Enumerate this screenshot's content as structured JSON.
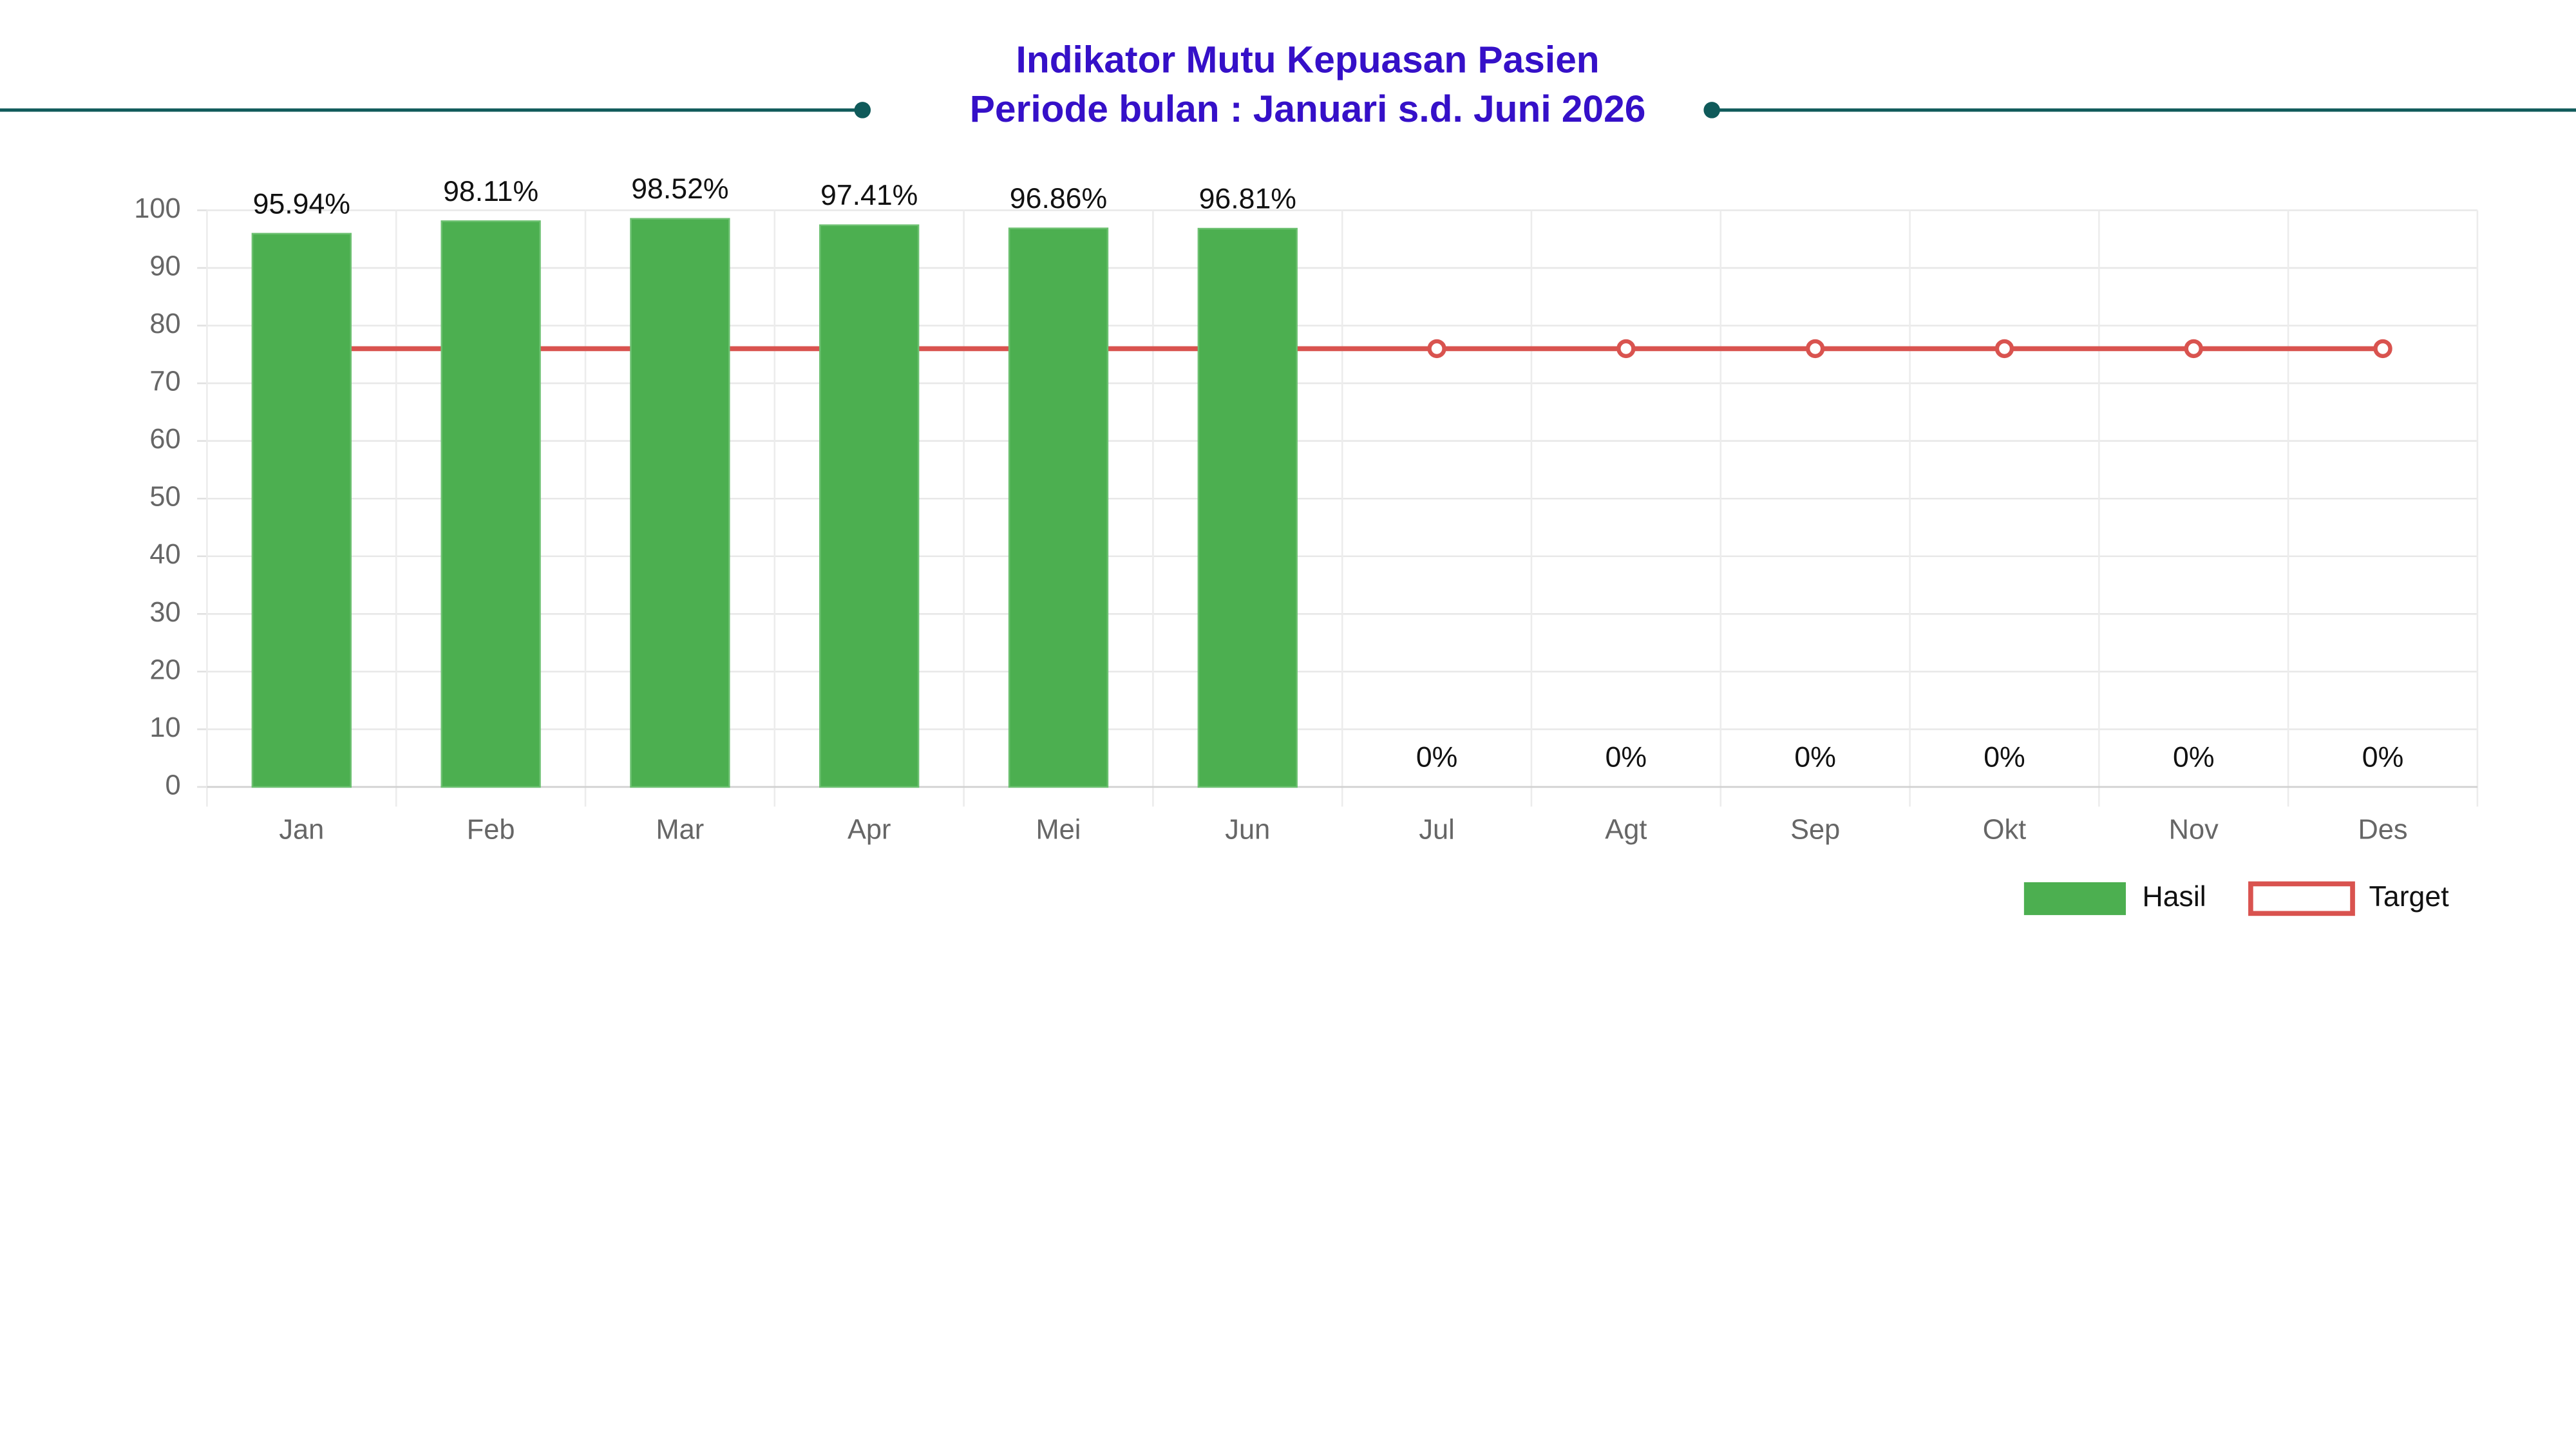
{
  "chart_data": {
    "type": "bar",
    "title": "Indikator Mutu Kepuasan Pasien",
    "subtitle": "Periode bulan : Januari s.d. Juni 2026",
    "categories": [
      "Jan",
      "Feb",
      "Mar",
      "Apr",
      "Mei",
      "Jun",
      "Jul",
      "Agt",
      "Sep",
      "Okt",
      "Nov",
      "Des"
    ],
    "series": [
      {
        "name": "Hasil",
        "type": "bar",
        "color": "#4caf50",
        "values": [
          95.94,
          98.11,
          98.52,
          97.41,
          96.86,
          96.81,
          0,
          0,
          0,
          0,
          0,
          0
        ],
        "value_labels": [
          "95.94%",
          "98.11%",
          "98.52%",
          "97.41%",
          "96.86%",
          "96.81%",
          "0%",
          "0%",
          "0%",
          "0%",
          "0%",
          "0%"
        ]
      },
      {
        "name": "Target",
        "type": "line",
        "color": "#d9534f",
        "values": [
          76,
          76,
          76,
          76,
          76,
          76,
          76,
          76,
          76,
          76,
          76,
          76
        ]
      }
    ],
    "ylim": [
      0,
      100
    ],
    "yticks": [
      0,
      10,
      20,
      30,
      40,
      50,
      60,
      70,
      80,
      90,
      100
    ],
    "grid": true,
    "legend": "bottom-right"
  }
}
